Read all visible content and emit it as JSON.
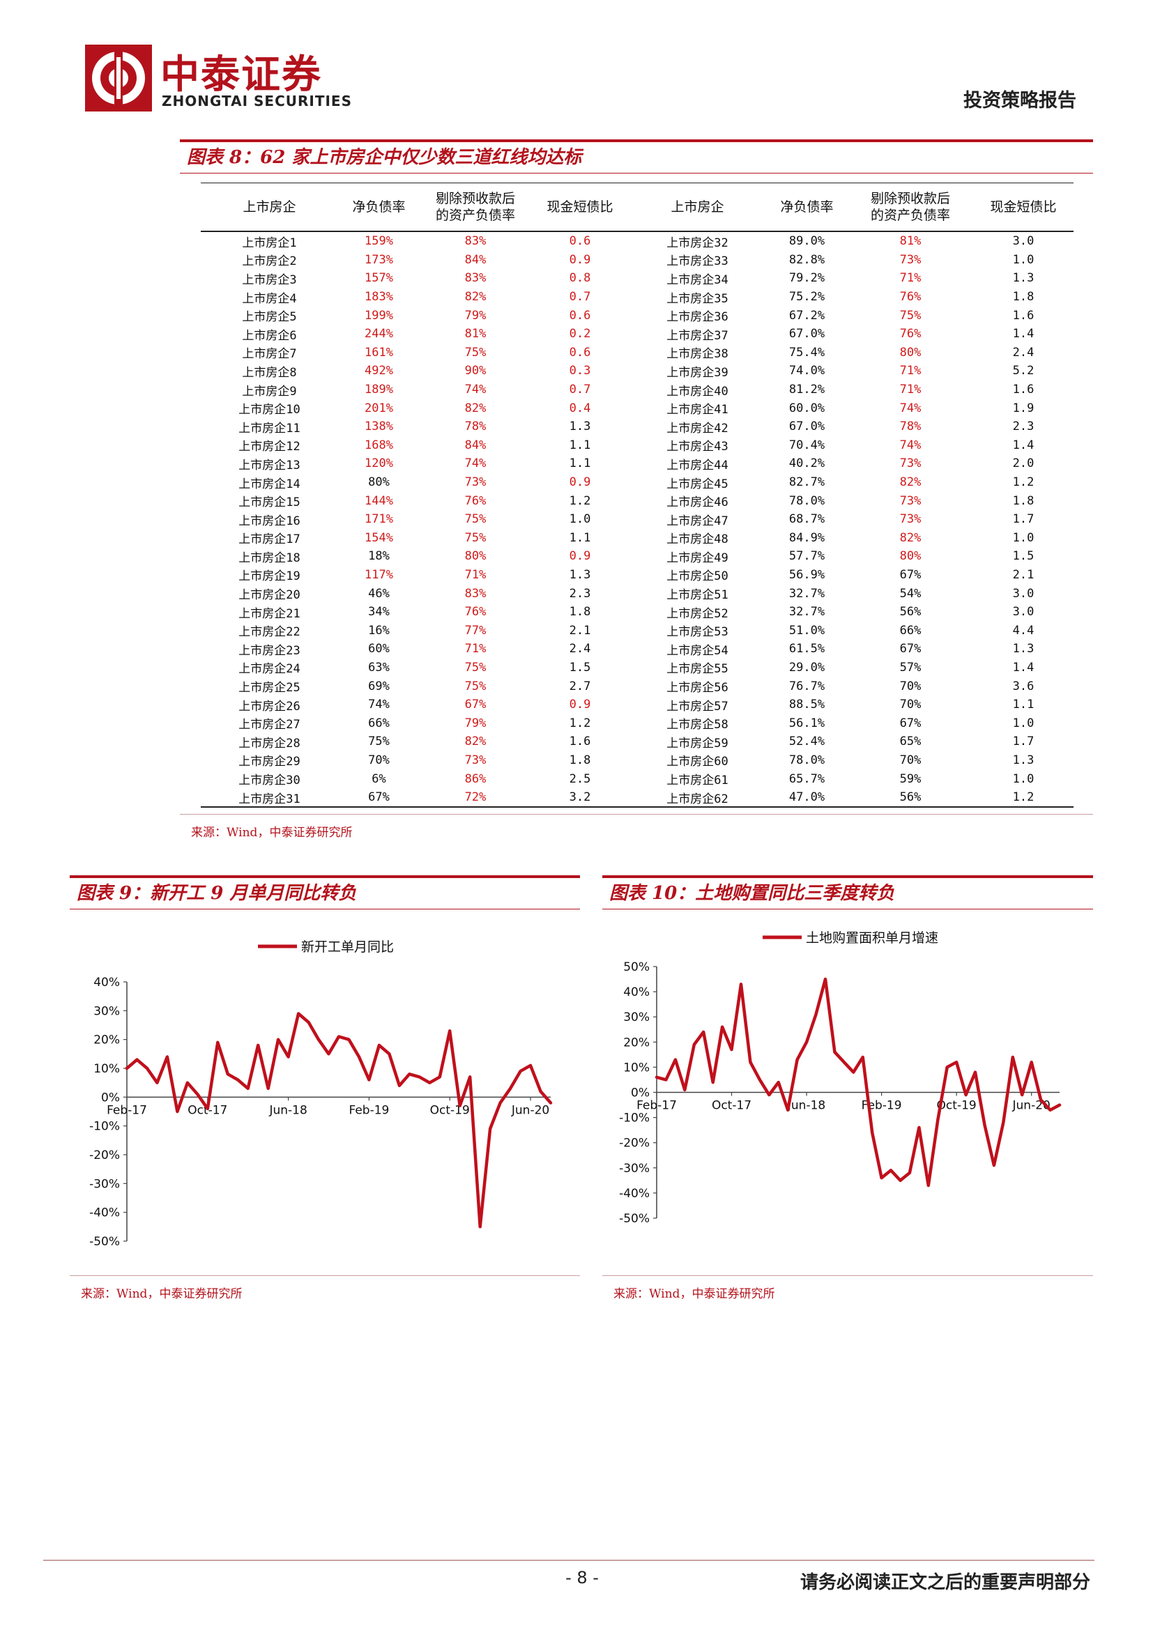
{
  "header": {
    "brand_cn": "中泰证券",
    "brand_en": "ZHONGTAI SECURITIES",
    "report_type": "投资策略报告",
    "accent_color": "#b3121c"
  },
  "figure8": {
    "title": "图表 8：62 家上市房企中仅少数三道红线均达标",
    "columns": [
      "上市房企",
      "净负债率",
      "剔除预收款后的资产负债率",
      "现金短债比",
      "上市房企",
      "净负债率",
      "剔除预收款后的资产负债率",
      "现金短债比"
    ],
    "column_lines": [
      [
        "上市房企"
      ],
      [
        "净负债率"
      ],
      [
        "剔除预收款后",
        "的资产负债率"
      ],
      [
        "现金短债比"
      ],
      [
        "上市房企"
      ],
      [
        "净负债率"
      ],
      [
        "剔除预收款后",
        "的资产负债率"
      ],
      [
        "现金短债比"
      ]
    ],
    "rows": [
      [
        "上市房企1",
        "159%",
        "83%",
        "0.6",
        "上市房企32",
        "89.0%",
        "81%",
        "3.0"
      ],
      [
        "上市房企2",
        "173%",
        "84%",
        "0.9",
        "上市房企33",
        "82.8%",
        "73%",
        "1.0"
      ],
      [
        "上市房企3",
        "157%",
        "83%",
        "0.8",
        "上市房企34",
        "79.2%",
        "71%",
        "1.3"
      ],
      [
        "上市房企4",
        "183%",
        "82%",
        "0.7",
        "上市房企35",
        "75.2%",
        "76%",
        "1.8"
      ],
      [
        "上市房企5",
        "199%",
        "79%",
        "0.6",
        "上市房企36",
        "67.2%",
        "75%",
        "1.6"
      ],
      [
        "上市房企6",
        "244%",
        "81%",
        "0.2",
        "上市房企37",
        "67.0%",
        "76%",
        "1.4"
      ],
      [
        "上市房企7",
        "161%",
        "75%",
        "0.6",
        "上市房企38",
        "75.4%",
        "80%",
        "2.4"
      ],
      [
        "上市房企8",
        "492%",
        "90%",
        "0.3",
        "上市房企39",
        "74.0%",
        "71%",
        "5.2"
      ],
      [
        "上市房企9",
        "189%",
        "74%",
        "0.7",
        "上市房企40",
        "81.2%",
        "71%",
        "1.6"
      ],
      [
        "上市房企10",
        "201%",
        "82%",
        "0.4",
        "上市房企41",
        "60.0%",
        "74%",
        "1.9"
      ],
      [
        "上市房企11",
        "138%",
        "78%",
        "1.3",
        "上市房企42",
        "67.0%",
        "78%",
        "2.3"
      ],
      [
        "上市房企12",
        "168%",
        "84%",
        "1.1",
        "上市房企43",
        "70.4%",
        "74%",
        "1.4"
      ],
      [
        "上市房企13",
        "120%",
        "74%",
        "1.1",
        "上市房企44",
        "40.2%",
        "73%",
        "2.0"
      ],
      [
        "上市房企14",
        "80%",
        "73%",
        "0.9",
        "上市房企45",
        "82.7%",
        "82%",
        "1.2"
      ],
      [
        "上市房企15",
        "144%",
        "76%",
        "1.2",
        "上市房企46",
        "78.0%",
        "73%",
        "1.8"
      ],
      [
        "上市房企16",
        "171%",
        "75%",
        "1.0",
        "上市房企47",
        "68.7%",
        "73%",
        "1.7"
      ],
      [
        "上市房企17",
        "154%",
        "75%",
        "1.1",
        "上市房企48",
        "84.9%",
        "82%",
        "1.0"
      ],
      [
        "上市房企18",
        "18%",
        "80%",
        "0.9",
        "上市房企49",
        "57.7%",
        "80%",
        "1.5"
      ],
      [
        "上市房企19",
        "117%",
        "71%",
        "1.3",
        "上市房企50",
        "56.9%",
        "67%",
        "2.1"
      ],
      [
        "上市房企20",
        "46%",
        "83%",
        "2.3",
        "上市房企51",
        "32.7%",
        "54%",
        "3.0"
      ],
      [
        "上市房企21",
        "34%",
        "76%",
        "1.8",
        "上市房企52",
        "32.7%",
        "56%",
        "3.0"
      ],
      [
        "上市房企22",
        "16%",
        "77%",
        "2.1",
        "上市房企53",
        "51.0%",
        "66%",
        "4.4"
      ],
      [
        "上市房企23",
        "60%",
        "71%",
        "2.4",
        "上市房企54",
        "61.5%",
        "67%",
        "1.3"
      ],
      [
        "上市房企24",
        "63%",
        "75%",
        "1.5",
        "上市房企55",
        "29.0%",
        "57%",
        "1.4"
      ],
      [
        "上市房企25",
        "69%",
        "75%",
        "2.7",
        "上市房企56",
        "76.7%",
        "70%",
        "3.6"
      ],
      [
        "上市房企26",
        "74%",
        "67%",
        "0.9",
        "上市房企57",
        "88.5%",
        "70%",
        "1.1"
      ],
      [
        "上市房企27",
        "66%",
        "79%",
        "1.2",
        "上市房企58",
        "56.1%",
        "67%",
        "1.0"
      ],
      [
        "上市房企28",
        "75%",
        "82%",
        "1.6",
        "上市房企59",
        "52.4%",
        "65%",
        "1.7"
      ],
      [
        "上市房企29",
        "70%",
        "73%",
        "1.8",
        "上市房企60",
        "78.0%",
        "70%",
        "1.3"
      ],
      [
        "上市房企30",
        "6%",
        "86%",
        "2.5",
        "上市房企61",
        "65.7%",
        "59%",
        "1.0"
      ],
      [
        "上市房企31",
        "67%",
        "72%",
        "3.2",
        "上市房企62",
        "47.0%",
        "56%",
        "1.2"
      ]
    ],
    "red_cells": [
      [
        1,
        2,
        3,
        6
      ],
      [
        1,
        2,
        3,
        6
      ],
      [
        1,
        2,
        3,
        6
      ],
      [
        1,
        2,
        3,
        6
      ],
      [
        1,
        2,
        3,
        6
      ],
      [
        1,
        2,
        3,
        6
      ],
      [
        1,
        2,
        3,
        6
      ],
      [
        1,
        2,
        3,
        6
      ],
      [
        1,
        2,
        3,
        6
      ],
      [
        1,
        2,
        3,
        6
      ],
      [
        1,
        2,
        6
      ],
      [
        1,
        2,
        6
      ],
      [
        1,
        2,
        6
      ],
      [
        2,
        3,
        6
      ],
      [
        1,
        2,
        6
      ],
      [
        1,
        2,
        6
      ],
      [
        1,
        2,
        6
      ],
      [
        2,
        3,
        6
      ],
      [
        1,
        2
      ],
      [
        2
      ],
      [
        2
      ],
      [
        2
      ],
      [
        2
      ],
      [
        2
      ],
      [
        2
      ],
      [
        2,
        3
      ],
      [
        2
      ],
      [
        2
      ],
      [
        2
      ],
      [
        2
      ],
      [
        2
      ]
    ],
    "source": "来源：Wind，中泰证券研究所"
  },
  "figure9": {
    "title": "图表 9：新开工 9 月单月同比转负",
    "source": "来源：Wind，中泰证券研究所"
  },
  "figure10": {
    "title": "图表 10：土地购置同比三季度转负",
    "source": "来源：Wind，中泰证券研究所"
  },
  "chart_data": [
    {
      "type": "line",
      "title": "",
      "series": [
        {
          "name": "新开工单月同比",
          "color": "#c0101c",
          "values": [
            10,
            13,
            10,
            5,
            14,
            -5,
            5,
            1,
            -4,
            19,
            8,
            6,
            3,
            18,
            3,
            20,
            14,
            29,
            26,
            20,
            15,
            21,
            20,
            14,
            6,
            18,
            15,
            4,
            8,
            7,
            5,
            7,
            23,
            -3,
            7,
            -45,
            -11,
            -2,
            3,
            9,
            11,
            2,
            -2
          ]
        }
      ],
      "x_tick_labels": [
        "Feb-17",
        "Oct-17",
        "Jun-18",
        "Feb-19",
        "Oct-19",
        "Jun-20"
      ],
      "x_tick_index": [
        0,
        8,
        16,
        24,
        32,
        40
      ],
      "yticks": [
        40,
        30,
        20,
        10,
        0,
        -10,
        -20,
        -30,
        -40,
        -50
      ],
      "ytick_labels": [
        "40%",
        "30%",
        "20%",
        "10%",
        "0%",
        "-10%",
        "-20%",
        "-30%",
        "-40%",
        "-50%"
      ],
      "ylim": [
        -50,
        40
      ],
      "legend": "top-center",
      "grid": false
    },
    {
      "type": "line",
      "title": "",
      "series": [
        {
          "name": "土地购置面积单月增速",
          "color": "#c0101c",
          "values": [
            6,
            5,
            13,
            1,
            19,
            24,
            4,
            26,
            17,
            43,
            12,
            5,
            -1,
            4,
            -7,
            13,
            20,
            31,
            45,
            16,
            12,
            8,
            14,
            -16,
            -34,
            -31,
            -35,
            -32,
            -14,
            -37,
            -11,
            10,
            12,
            -1,
            8,
            -13,
            -29,
            -12,
            14,
            -1,
            12,
            -3,
            -7,
            -5
          ]
        }
      ],
      "x_tick_labels": [
        "Feb-17",
        "Oct-17",
        "Jun-18",
        "Feb-19",
        "Oct-19",
        "Jun-20"
      ],
      "x_tick_index": [
        0,
        8,
        16,
        24,
        32,
        40
      ],
      "yticks": [
        50,
        40,
        30,
        20,
        10,
        0,
        -10,
        -20,
        -30,
        -40,
        -50
      ],
      "ytick_labels": [
        "50%",
        "40%",
        "30%",
        "20%",
        "10%",
        "0%",
        "-10%",
        "-20%",
        "-30%",
        "-40%",
        "-50%"
      ],
      "ylim": [
        -50,
        50
      ],
      "legend": "top-center",
      "grid": false
    }
  ],
  "footer": {
    "page_number": "- 8 -",
    "disclaimer": "请务必阅读正文之后的重要声明部分"
  }
}
